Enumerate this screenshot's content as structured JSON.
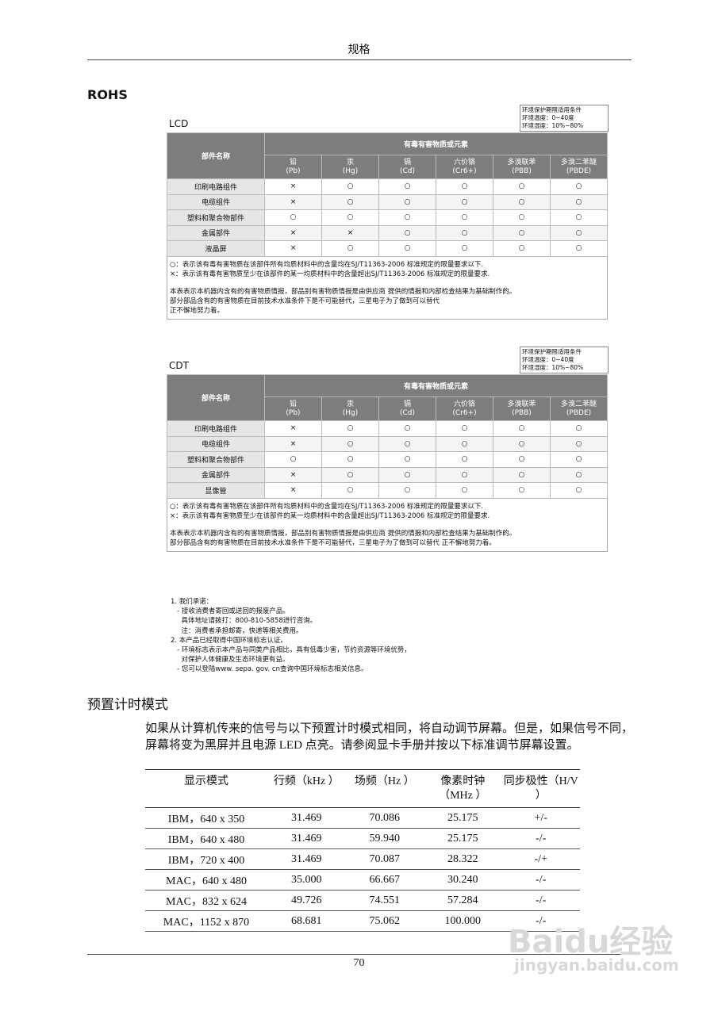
{
  "header": {
    "title": "规格"
  },
  "section_title": "ROHS",
  "rohs_tables": [
    {
      "label": "LCD",
      "conditions": [
        "环境保护期限适用条件",
        "环境温度：0~40度",
        "环境湿度：10%~80%"
      ],
      "part_header": "部件名称",
      "substance_header": "有毒有害物质或元素",
      "substances": [
        {
          "name": "铅",
          "symbol": "(Pb)"
        },
        {
          "name": "汞",
          "symbol": "(Hg)"
        },
        {
          "name": "镉",
          "symbol": "(Cd)"
        },
        {
          "name": "六价铬",
          "symbol": "(Cr6+)"
        },
        {
          "name": "多溴联苯",
          "symbol": "(PBB)"
        },
        {
          "name": "多溴二苯醚",
          "symbol": "(PBDE)"
        }
      ],
      "rows": [
        [
          "印刷电路组件",
          "×",
          "○",
          "○",
          "○",
          "○",
          "○"
        ],
        [
          "电缆组件",
          "×",
          "○",
          "○",
          "○",
          "○",
          "○"
        ],
        [
          "塑料和聚合物部件",
          "○",
          "○",
          "○",
          "○",
          "○",
          "○"
        ],
        [
          "金属部件",
          "×",
          "×",
          "○",
          "○",
          "○",
          "○"
        ],
        [
          "液晶屏",
          "×",
          "○",
          "○",
          "○",
          "○",
          "○"
        ]
      ],
      "notes": [
        "○：表示该有毒有害物质在该部件所有均质材料中的含量均在SJ/T11363-2006 标准规定的限量要求以下.",
        "×：表示该有毒有害物质至少在该部件的某一均质材料中的含量超出SJ/T11363-2006 标准规定的限量要求.",
        "本表表示本机器内含有的有害物质情报，部品别有害物质情报是由供应商 提供的情报和内部检查结果为基础制作的。",
        "部分部品含有的有害物质在目前技术水准条件下是不可能替代，三星电子为了做到可以替代",
        "正不懈地努力着。"
      ]
    },
    {
      "label": "CDT",
      "conditions": [
        "环境保护期限适用条件",
        "环境温度：0~40度",
        "环境湿度：10%~80%"
      ],
      "part_header": "部件名称",
      "substance_header": "有毒有害物质或元素",
      "substances": [
        {
          "name": "铅",
          "symbol": "(Pb)"
        },
        {
          "name": "汞",
          "symbol": "(Hg)"
        },
        {
          "name": "镉",
          "symbol": "(Cd)"
        },
        {
          "name": "六价铬",
          "symbol": "(Cr6+)"
        },
        {
          "name": "多溴联苯",
          "symbol": "(PBB)"
        },
        {
          "name": "多溴二苯醚",
          "symbol": "(PBDE)"
        }
      ],
      "rows": [
        [
          "印刷电路组件",
          "×",
          "○",
          "○",
          "○",
          "○",
          "○"
        ],
        [
          "电缆组件",
          "×",
          "○",
          "○",
          "○",
          "○",
          "○"
        ],
        [
          "塑料和聚合物部件",
          "○",
          "○",
          "○",
          "○",
          "○",
          "○"
        ],
        [
          "金属部件",
          "×",
          "○",
          "○",
          "○",
          "○",
          "○"
        ],
        [
          "显像管",
          "×",
          "○",
          "○",
          "○",
          "○",
          "○"
        ]
      ],
      "notes": [
        "○：表示该有毒有害物质在该部件所有均质材料中的含量均在SJ/T11363-2006 标准规定的限量要求以下.",
        "×：表示该有毒有害物质至少在该部件的某一均质材料中的含量超出SJ/T11363-2006 标准规定的限量要求.",
        "本表表示本机器内含有的有害物质情报，部品别有害物质情报是由供应商 提供的情报和内部检查结果为基础制作的。",
        "部分部品含有的有害物质在目前技术水准条件下是不可能替代，三星电子为了做到可以替代 正不懈地努力着。"
      ]
    }
  ],
  "promise": [
    "1. 我们承诺：",
    "   - 接收消费者寄回或送回的报废产品。",
    "     具体地址请拨打：800-810-5858进行咨询。",
    "     注：消费者承担邮寄，快递等相关费用。",
    "2. 本产品已经取得中国环境标志认证。",
    "   - 环境标志表示本产品与同类产品相比，具有低毒少害，节约资源等环境优势，",
    "     对保护人体健康及生态环境更有益。",
    "   - 您可以登陆www. sepa. gov. cn查询中国环境标志相关信息。"
  ],
  "timing": {
    "title": "预置计时模式",
    "paragraph": "如果从计算机传来的信号与以下预置计时模式相同，将自动调节屏幕。但是，如果信号不同，屏幕将变为黑屏并且电源 LED 点亮。请参阅显卡手册并按以下标准调节屏幕设置。",
    "headers": [
      "显示模式",
      "行频（kHz ）",
      "场频（Hz ）",
      "像素时钟（MHz ）",
      "同步极性（H/V ）"
    ],
    "rows": [
      [
        "IBM，640 x 350",
        "31.469",
        "70.086",
        "25.175",
        "+/-"
      ],
      [
        "IBM，640 x 480",
        "31.469",
        "59.940",
        "25.175",
        "-/-"
      ],
      [
        "IBM，720 x 400",
        "31.469",
        "70.087",
        "28.322",
        "-/+"
      ],
      [
        "MAC，640 x 480",
        "35.000",
        "66.667",
        "30.240",
        "-/-"
      ],
      [
        "MAC，832 x 624",
        "49.726",
        "74.551",
        "57.284",
        "-/-"
      ],
      [
        "MAC，1152 x 870",
        "68.681",
        "75.062",
        "100.000",
        "-/-"
      ]
    ]
  },
  "footer": {
    "page": "70"
  },
  "watermark": {
    "brand": "Baidu经验",
    "url": "jingyan.baidu.com"
  }
}
